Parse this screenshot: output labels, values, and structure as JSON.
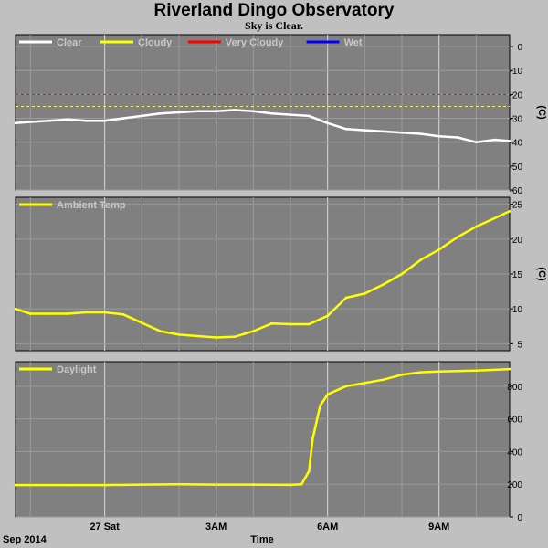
{
  "header": {
    "title": "Riverland Dingo Observatory",
    "subtitle": "Sky is Clear."
  },
  "colors": {
    "background": "#c0c0c0",
    "plot_bg": "#808080",
    "grid": "#c8c8c8",
    "clear": "#ffffff",
    "cloudy": "#ffff00",
    "very_cloudy": "#ff0000",
    "wet": "#0000ff",
    "series": "#ffff00"
  },
  "chart_data": [
    {
      "type": "line",
      "panel": "sky",
      "legend": [
        {
          "name": "Clear",
          "color": "#ffffff"
        },
        {
          "name": "Cloudy",
          "color": "#ffff00"
        },
        {
          "name": "Very Cloudy",
          "color": "#ff0000"
        },
        {
          "name": "Wet",
          "color": "#0000ff"
        }
      ],
      "ylabel": "(C)",
      "ylim": [
        -60,
        5
      ],
      "yticks": [
        0,
        -10,
        -20,
        -30,
        -40,
        -50,
        -60
      ],
      "xlim": [
        -2.4,
        10.9
      ],
      "thresholds": [
        {
          "value": -20,
          "color": "#ff0000"
        },
        {
          "value": -25,
          "color": "#ffff00"
        }
      ],
      "series": [
        {
          "color": "#ffffff",
          "x": [
            -2.4,
            -2.0,
            -1.5,
            -1.0,
            -0.5,
            0.0,
            0.5,
            1.0,
            1.5,
            2.0,
            2.5,
            3.0,
            3.5,
            4.0,
            4.5,
            5.0,
            5.5,
            6.0,
            6.5,
            7.0,
            7.5,
            8.0,
            8.5,
            9.0,
            9.5,
            10.0,
            10.5,
            10.9
          ],
          "values": [
            -32,
            -31.5,
            -31,
            -30.5,
            -31,
            -31,
            -30,
            -29,
            -28,
            -27.5,
            -27,
            -27,
            -26.5,
            -27,
            -28,
            -28.5,
            -29,
            -32,
            -34.5,
            -35,
            -35.5,
            -36,
            -36.5,
            -37.5,
            -38,
            -40,
            -39,
            -39.5
          ]
        }
      ]
    },
    {
      "type": "line",
      "panel": "ambient",
      "legend": [
        {
          "name": "Ambient Temp",
          "color": "#ffff00"
        }
      ],
      "ylabel": "(C)",
      "ylim": [
        4,
        26
      ],
      "yticks": [
        5,
        10,
        15,
        20,
        25
      ],
      "xlim": [
        -2.4,
        10.9
      ],
      "series": [
        {
          "color": "#ffff00",
          "x": [
            -2.4,
            -2.0,
            -1.5,
            -1.0,
            -0.5,
            0.0,
            0.5,
            1.0,
            1.5,
            2.0,
            2.5,
            3.0,
            3.5,
            4.0,
            4.5,
            5.0,
            5.5,
            6.0,
            6.5,
            7.0,
            7.5,
            8.0,
            8.5,
            9.0,
            9.5,
            10.0,
            10.5,
            10.9
          ],
          "values": [
            10,
            9.3,
            9.3,
            9.3,
            9.5,
            9.5,
            9.2,
            8,
            6.8,
            6.3,
            6.1,
            5.9,
            6.0,
            6.8,
            7.9,
            7.8,
            7.8,
            9,
            11.6,
            12.2,
            13.5,
            15,
            17,
            18.5,
            20.3,
            21.8,
            23,
            24
          ]
        }
      ]
    },
    {
      "type": "line",
      "panel": "daylight",
      "legend": [
        {
          "name": "Daylight",
          "color": "#ffff00"
        }
      ],
      "ylim": [
        0,
        950
      ],
      "yticks": [
        0,
        200,
        400,
        600,
        800
      ],
      "xlim": [
        -2.4,
        10.9
      ],
      "xlabel": "Time",
      "xticks": [
        {
          "x": 0,
          "label": "27 Sat"
        },
        {
          "x": 3,
          "label": "3AM"
        },
        {
          "x": 6,
          "label": "6AM"
        },
        {
          "x": 9,
          "label": "9AM"
        }
      ],
      "date_label": "Sep 2014",
      "series": [
        {
          "color": "#ffff00",
          "x": [
            -2.4,
            -1.0,
            0.0,
            1.0,
            2.0,
            3.0,
            4.0,
            5.0,
            5.3,
            5.5,
            5.6,
            5.8,
            6.0,
            6.3,
            6.5,
            7.0,
            7.5,
            8.0,
            8.5,
            9.0,
            9.5,
            10.0,
            10.5,
            10.9
          ],
          "values": [
            195,
            195,
            195,
            198,
            200,
            198,
            198,
            196,
            200,
            280,
            480,
            680,
            750,
            780,
            800,
            820,
            840,
            870,
            885,
            890,
            893,
            896,
            900,
            905
          ]
        }
      ]
    }
  ]
}
